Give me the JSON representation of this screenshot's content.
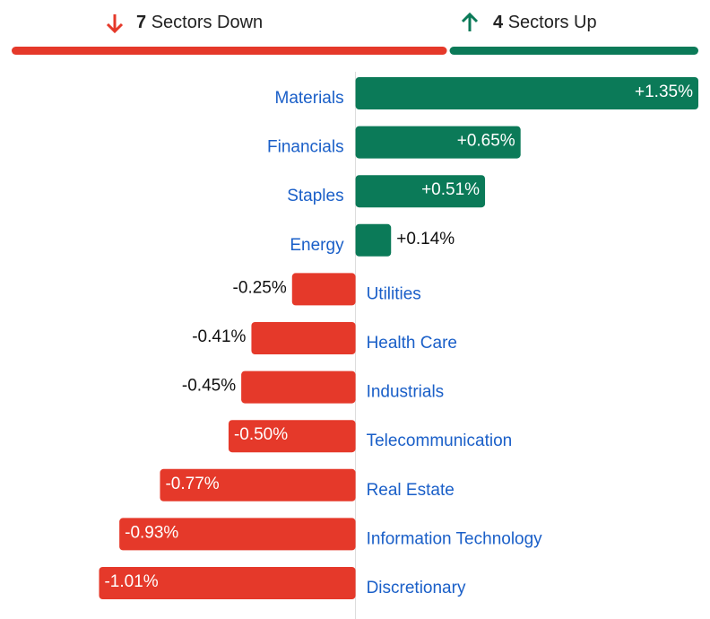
{
  "header": {
    "down_count": 7,
    "down_label": "Sectors Down",
    "up_count": 4,
    "up_label": "Sectors Up",
    "down_color": "#e5392a",
    "up_color": "#0b7a58"
  },
  "chart_data": {
    "type": "bar",
    "orientation": "horizontal",
    "categories": [
      "Materials",
      "Financials",
      "Staples",
      "Energy",
      "Utilities",
      "Health Care",
      "Industrials",
      "Telecommunication",
      "Real Estate",
      "Information Technology",
      "Discretionary"
    ],
    "values": [
      1.35,
      0.65,
      0.51,
      0.14,
      -0.25,
      -0.41,
      -0.45,
      -0.5,
      -0.77,
      -0.93,
      -1.01
    ],
    "value_labels": [
      "+1.35%",
      "+0.65%",
      "+0.51%",
      "+0.14%",
      "-0.25%",
      "-0.41%",
      "-0.45%",
      "-0.50%",
      "-0.77%",
      "-0.93%",
      "-1.01%"
    ],
    "positive_color": "#0b7a58",
    "negative_color": "#e5392a",
    "xlim": [
      -1.4,
      1.35
    ]
  }
}
